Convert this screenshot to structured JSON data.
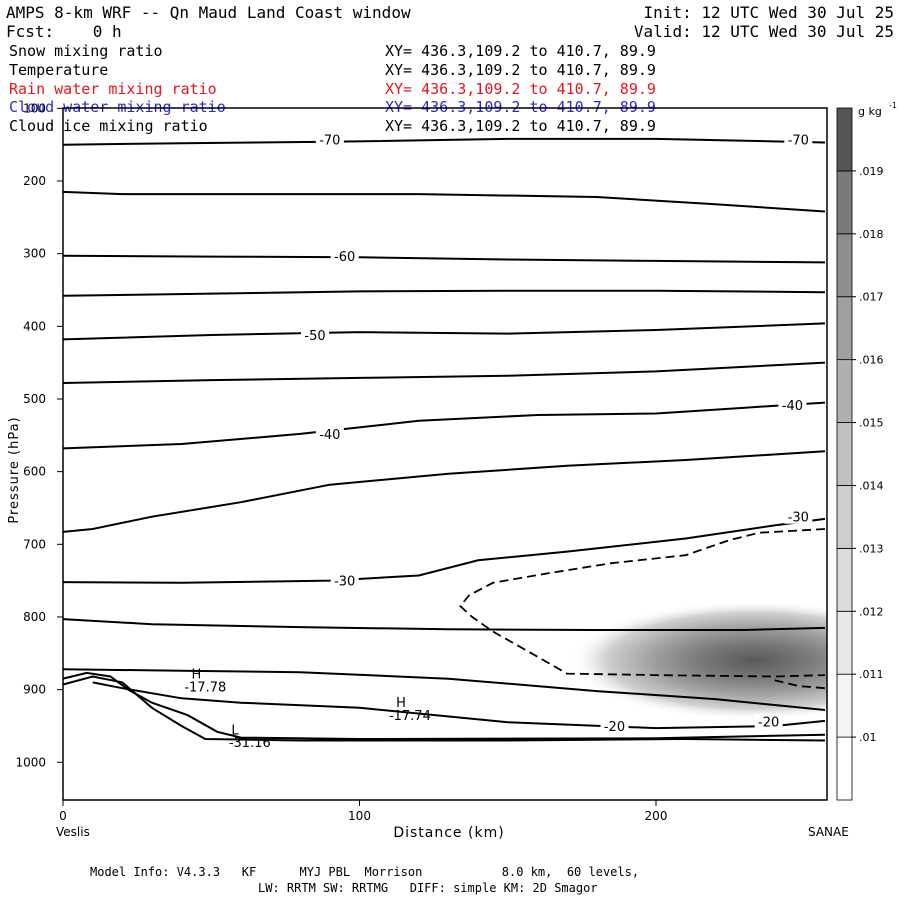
{
  "header": {
    "title": "AMPS 8-km WRF -- Qn Maud Land Coast window",
    "init": "Init: 12 UTC Wed 30 Jul 25",
    "fcst": "Fcst:    0 h",
    "valid": "Valid: 12 UTC Wed 30 Jul 25"
  },
  "fields": [
    {
      "name": "Snow mixing ratio",
      "xy": "XY= 436.3,109.2 to 410.7, 89.9",
      "color": "#000000"
    },
    {
      "name": "Temperature",
      "xy": "XY= 436.3,109.2 to 410.7, 89.9",
      "color": "#000000"
    },
    {
      "name": "Rain water mixing ratio",
      "xy": "XY= 436.3,109.2 to 410.7, 89.9",
      "color": "#e8141c"
    },
    {
      "name": "Cloud water mixing ratio",
      "xy": "XY= 436.3,109.2 to 410.7, 89.9",
      "color": "#2a2ad0"
    },
    {
      "name": "Cloud ice mixing ratio",
      "xy": "XY= 436.3,109.2 to 410.7, 89.9",
      "color": "#000000"
    }
  ],
  "chart_data": {
    "type": "contour cross-section",
    "xlabel": "Distance (km)",
    "ylabel": "Pressure (hPa)",
    "xlim": [
      0,
      257
    ],
    "ylim": [
      1050,
      100
    ],
    "x_ticks": [
      0,
      100,
      200
    ],
    "y_ticks": [
      100,
      200,
      300,
      400,
      500,
      600,
      700,
      800,
      900,
      1000
    ],
    "x_end_labels": {
      "left": "Veslis",
      "right": "SANAE"
    },
    "colorbar": {
      "unit": "g kg",
      "unit_exp": "-1",
      "tick_labels": [
        ".01",
        ".011",
        ".012",
        ".013",
        ".014",
        ".015",
        ".016",
        ".017",
        ".018",
        ".019"
      ],
      "levels": [
        0.0095,
        0.01,
        0.011,
        0.012,
        0.013,
        0.014,
        0.015,
        0.016,
        0.017,
        0.018,
        0.019,
        0.0195
      ],
      "colors": [
        "#ffffff",
        "#f4f4f4",
        "#e8e8e8",
        "#dcdcdc",
        "#cecece",
        "#c0c0c0",
        "#b0b0b0",
        "#a0a0a0",
        "#8e8e8e",
        "#7a7a7a",
        "#555555"
      ]
    },
    "temperature_contours": [
      {
        "label": "-70",
        "points": [
          [
            0,
            150
          ],
          [
            40,
            148
          ],
          [
            90,
            146
          ],
          [
            150,
            142
          ],
          [
            200,
            142
          ],
          [
            257,
            147
          ]
        ]
      },
      {
        "label": "",
        "points": [
          [
            0,
            215
          ],
          [
            20,
            218
          ],
          [
            60,
            218
          ],
          [
            120,
            218
          ],
          [
            180,
            222
          ],
          [
            220,
            232
          ],
          [
            257,
            242
          ]
        ]
      },
      {
        "label": "-60",
        "points": [
          [
            0,
            303
          ],
          [
            50,
            304
          ],
          [
            100,
            305
          ],
          [
            150,
            308
          ],
          [
            200,
            310
          ],
          [
            257,
            312
          ]
        ]
      },
      {
        "label": "",
        "points": [
          [
            0,
            358
          ],
          [
            50,
            355
          ],
          [
            100,
            352
          ],
          [
            150,
            351
          ],
          [
            200,
            351
          ],
          [
            257,
            353
          ]
        ]
      },
      {
        "label": "-50",
        "points": [
          [
            0,
            418
          ],
          [
            50,
            412
          ],
          [
            100,
            408
          ],
          [
            150,
            410
          ],
          [
            200,
            405
          ],
          [
            257,
            396
          ]
        ]
      },
      {
        "label": "",
        "points": [
          [
            0,
            478
          ],
          [
            50,
            474
          ],
          [
            100,
            471
          ],
          [
            150,
            468
          ],
          [
            200,
            462
          ],
          [
            257,
            450
          ]
        ]
      },
      {
        "label": "-40",
        "points": [
          [
            0,
            568
          ],
          [
            40,
            562
          ],
          [
            80,
            548
          ],
          [
            120,
            530
          ],
          [
            160,
            522
          ],
          [
            200,
            520
          ],
          [
            230,
            512
          ],
          [
            257,
            505
          ]
        ]
      },
      {
        "label": "",
        "points": [
          [
            0,
            683
          ],
          [
            10,
            679
          ],
          [
            30,
            662
          ],
          [
            60,
            642
          ],
          [
            90,
            618
          ],
          [
            130,
            603
          ],
          [
            170,
            592
          ],
          [
            210,
            584
          ],
          [
            257,
            572
          ]
        ]
      },
      {
        "label": "-30",
        "points": [
          [
            0,
            752
          ],
          [
            40,
            753
          ],
          [
            90,
            750
          ],
          [
            120,
            743
          ],
          [
            140,
            722
          ],
          [
            170,
            710
          ],
          [
            210,
            692
          ],
          [
            240,
            674
          ],
          [
            257,
            665
          ]
        ]
      },
      {
        "label": "",
        "points": [
          [
            0,
            803
          ],
          [
            30,
            810
          ],
          [
            80,
            814
          ],
          [
            130,
            817
          ],
          [
            180,
            818
          ],
          [
            230,
            818
          ],
          [
            257,
            815
          ]
        ]
      },
      {
        "label": "",
        "points": [
          [
            0,
            872
          ],
          [
            40,
            874
          ],
          [
            80,
            876
          ],
          [
            130,
            885
          ],
          [
            180,
            902
          ],
          [
            220,
            913
          ],
          [
            257,
            928
          ]
        ]
      },
      {
        "label": "-20",
        "points": [
          [
            10,
            890
          ],
          [
            20,
            898
          ],
          [
            40,
            912
          ],
          [
            60,
            918
          ],
          [
            100,
            925
          ],
          [
            150,
            945
          ],
          [
            200,
            953
          ],
          [
            240,
            950
          ],
          [
            257,
            943
          ]
        ]
      },
      {
        "label": "",
        "points": [
          [
            0,
            885
          ],
          [
            8,
            877
          ],
          [
            16,
            882
          ],
          [
            22,
            900
          ],
          [
            30,
            918
          ],
          [
            42,
            935
          ],
          [
            52,
            958
          ],
          [
            60,
            966
          ],
          [
            100,
            968
          ],
          [
            200,
            967
          ],
          [
            257,
            962
          ]
        ]
      },
      {
        "label": "",
        "points": [
          [
            0,
            893
          ],
          [
            10,
            882
          ],
          [
            20,
            890
          ],
          [
            30,
            925
          ],
          [
            40,
            950
          ],
          [
            48,
            968
          ],
          [
            80,
            970
          ],
          [
            150,
            970
          ],
          [
            210,
            968
          ],
          [
            257,
            970
          ]
        ]
      }
    ],
    "dashed_contours": [
      {
        "points": [
          [
            257,
            679
          ],
          [
            235,
            684
          ],
          [
            225,
            694
          ],
          [
            210,
            715
          ],
          [
            185,
            726
          ],
          [
            165,
            739
          ],
          [
            145,
            753
          ],
          [
            137,
            770
          ],
          [
            134,
            785
          ],
          [
            138,
            800
          ],
          [
            145,
            820
          ],
          [
            158,
            850
          ],
          [
            170,
            878
          ],
          [
            200,
            880
          ],
          [
            240,
            882
          ],
          [
            257,
            880
          ]
        ]
      },
      {
        "points": [
          [
            240,
            887
          ],
          [
            248,
            895
          ],
          [
            257,
            898
          ]
        ]
      }
    ],
    "snow_max": {
      "center_x_km": 233,
      "center_p_hPa": 860,
      "max_g_per_kg": 0.0195
    },
    "annotations": [
      {
        "text": "H",
        "x": 45,
        "p": 878
      },
      {
        "text": "-17.78",
        "x": 48,
        "p": 896
      },
      {
        "text": "H",
        "x": 114,
        "p": 917
      },
      {
        "text": "-17.74",
        "x": 117,
        "p": 935
      },
      {
        "text": "L",
        "x": 58,
        "p": 955
      },
      {
        "text": "-31.16",
        "x": 63,
        "p": 972
      }
    ],
    "contour_labels": [
      {
        "text": "-70",
        "x": 90,
        "p": 143
      },
      {
        "text": "-70",
        "x": 248,
        "p": 143
      },
      {
        "text": "-60",
        "x": 95,
        "p": 303
      },
      {
        "text": "-50",
        "x": 85,
        "p": 412
      },
      {
        "text": "-40",
        "x": 90,
        "p": 548
      },
      {
        "text": "-40",
        "x": 246,
        "p": 508
      },
      {
        "text": "-30",
        "x": 95,
        "p": 750
      },
      {
        "text": "-30",
        "x": 248,
        "p": 662
      },
      {
        "text": "-20",
        "x": 186,
        "p": 950
      },
      {
        "text": "-20",
        "x": 238,
        "p": 944
      }
    ]
  },
  "footer": {
    "line1": "Model Info: V4.3.3   KF      MYJ PBL  Morrison           8.0 km,  60 levels,",
    "line2": "LW: RRTM SW: RRTMG   DIFF: simple KM: 2D Smagor"
  }
}
